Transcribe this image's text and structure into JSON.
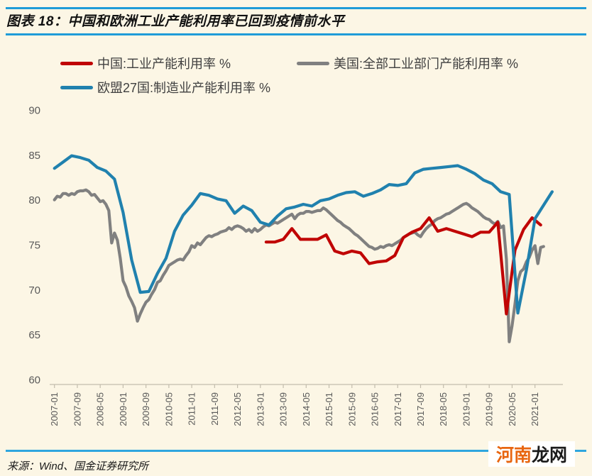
{
  "page": {
    "title": "图表 18：中国和欧洲工业产能利用率已回到疫情前水平",
    "source": "来源：Wind、国金证券研究所"
  },
  "watermark": {
    "part1": "河南",
    "part2": "龙网"
  },
  "theme": {
    "background": "#FCF6E5",
    "title_rule_blue": "#1F9CD8",
    "bottom_rule_blue": "#2FA6DE",
    "axis_text": "#595959",
    "axis_line": "#C3BDAD",
    "legend_text": "#404040",
    "watermark_orange": "#E8650F",
    "watermark_dark": "#1A1A1A"
  },
  "legend": {
    "items": [
      {
        "label": "中国:工业产能利用率 %",
        "series": "china"
      },
      {
        "label": "美国:全部工业部门产能利用率 %",
        "series": "us"
      },
      {
        "label": "欧盟27国:制造业产能利用率 %",
        "series": "eu27"
      }
    ]
  },
  "chart_data": {
    "type": "line",
    "title": "",
    "xlabel": "",
    "ylabel": "",
    "unit": "%",
    "grid": false,
    "legend_position": "top",
    "ylim": [
      60,
      90
    ],
    "y_ticks": [
      60,
      65,
      70,
      75,
      80,
      85,
      90
    ],
    "x_start": "2007-01",
    "x_tick_interval_months": 8,
    "x_ticks": [
      "2007-01",
      "2007-09",
      "2008-05",
      "2009-01",
      "2009-09",
      "2010-05",
      "2011-01",
      "2011-09",
      "2012-05",
      "2013-01",
      "2013-09",
      "2014-05",
      "2015-01",
      "2015-09",
      "2016-05",
      "2017-01",
      "2017-09",
      "2018-05",
      "2019-01",
      "2019-09",
      "2020-05",
      "2021-01"
    ],
    "draw_order": [
      "us",
      "china",
      "eu27"
    ],
    "series": [
      {
        "id": "china",
        "name": "中国:工业产能利用率 %",
        "color": "#C00404",
        "freq": "quarterly",
        "start_month_index": 74,
        "step_months": 3,
        "values": [
          75.3,
          75.3,
          75.6,
          76.8,
          75.6,
          75.6,
          75.6,
          76.1,
          74.3,
          74.0,
          74.3,
          74.1,
          72.9,
          73.1,
          73.2,
          73.8,
          75.8,
          76.4,
          76.8,
          78.0,
          76.5,
          76.8,
          76.5,
          76.2,
          75.9,
          76.4,
          76.4,
          77.5,
          67.3,
          74.4,
          76.7,
          78.0,
          77.2
        ]
      },
      {
        "id": "us",
        "name": "美国:全部工业部门产能利用率 %",
        "color": "#808080",
        "freq": "monthly",
        "start_month_index": 0,
        "step_months": 1,
        "values": [
          80.0,
          80.4,
          80.3,
          80.7,
          80.7,
          80.5,
          80.7,
          80.6,
          80.9,
          81.0,
          81.0,
          81.1,
          80.9,
          80.5,
          80.6,
          80.2,
          79.8,
          79.9,
          79.5,
          78.8,
          75.2,
          76.3,
          75.5,
          73.5,
          71.0,
          70.3,
          69.3,
          68.7,
          68.0,
          66.5,
          67.3,
          68.0,
          68.6,
          68.9,
          69.5,
          70.0,
          70.8,
          71.0,
          71.6,
          72.1,
          72.7,
          72.9,
          73.1,
          73.3,
          73.4,
          73.3,
          73.8,
          74.2,
          74.9,
          74.7,
          75.2,
          75.0,
          75.4,
          75.8,
          76.0,
          75.9,
          76.1,
          76.2,
          76.4,
          76.5,
          76.6,
          76.9,
          76.7,
          77.0,
          77.1,
          77.0,
          76.8,
          76.5,
          76.7,
          76.4,
          76.8,
          76.5,
          76.7,
          77.0,
          77.2,
          77.1,
          77.3,
          77.5,
          77.4,
          77.6,
          77.8,
          78.0,
          78.2,
          78.4,
          77.9,
          78.3,
          78.5,
          78.5,
          78.7,
          78.7,
          78.6,
          78.7,
          78.8,
          78.8,
          79.1,
          78.9,
          78.6,
          78.3,
          78.0,
          77.7,
          77.5,
          77.2,
          77.0,
          76.8,
          76.5,
          76.2,
          76.0,
          75.7,
          75.4,
          75.1,
          74.8,
          74.7,
          74.5,
          74.6,
          74.8,
          74.7,
          74.9,
          75.0,
          74.9,
          75.1,
          75.3,
          75.5,
          75.8,
          76.0,
          76.2,
          76.3,
          76.4,
          76.1,
          75.9,
          76.4,
          76.8,
          77.1,
          77.3,
          77.7,
          77.9,
          78.0,
          78.2,
          78.4,
          78.5,
          78.7,
          78.9,
          79.1,
          79.3,
          79.5,
          79.6,
          79.4,
          79.1,
          78.9,
          78.7,
          78.4,
          78.1,
          77.9,
          77.8,
          77.5,
          77.3,
          77.6,
          76.9,
          77.1,
          73.4,
          64.2,
          66.0,
          68.4,
          71.0,
          72.0,
          72.3,
          73.1,
          73.6,
          74.4,
          74.9,
          72.9,
          74.7,
          74.8
        ]
      },
      {
        "id": "eu27",
        "name": "欧盟27国:制造业产能利用率 %",
        "color": "#2081AE",
        "freq": "quarterly",
        "start_month_index": 0,
        "step_months": 3,
        "values": [
          83.5,
          84.2,
          84.9,
          84.7,
          84.4,
          83.6,
          83.2,
          82.3,
          78.6,
          73.3,
          69.7,
          69.8,
          71.8,
          73.5,
          76.5,
          78.3,
          79.4,
          80.7,
          80.5,
          80.1,
          79.9,
          78.5,
          79.3,
          78.8,
          77.5,
          77.2,
          78.2,
          79.0,
          79.2,
          79.5,
          79.3,
          79.9,
          80.1,
          80.5,
          80.8,
          80.9,
          80.4,
          80.7,
          81.1,
          81.7,
          81.6,
          81.8,
          83.0,
          83.4,
          83.5,
          83.6,
          83.7,
          83.8,
          83.4,
          82.9,
          82.2,
          81.8,
          80.9,
          80.6,
          67.4,
          72.2,
          77.9,
          79.4,
          80.9
        ]
      }
    ]
  }
}
